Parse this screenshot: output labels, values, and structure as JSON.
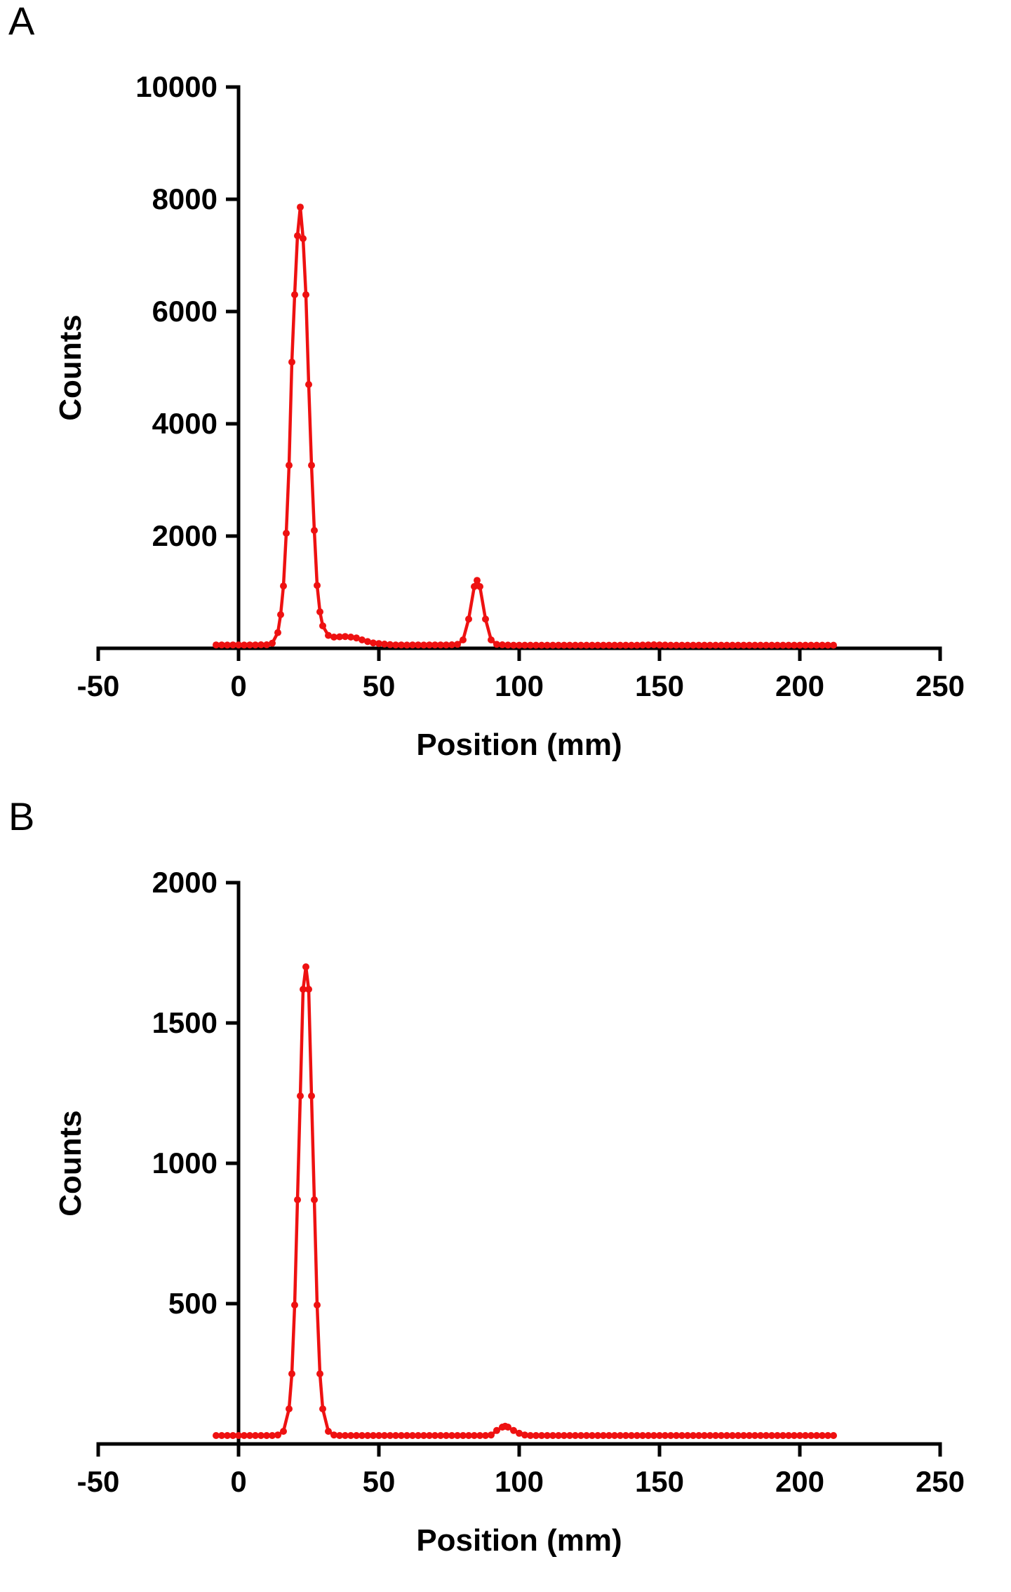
{
  "panels": [
    {
      "letter": "A"
    },
    {
      "letter": "B"
    }
  ],
  "chart_data": [
    {
      "type": "line",
      "title": "",
      "xlabel": "Position (mm)",
      "ylabel": "Counts",
      "xlim": [
        -50,
        250
      ],
      "ylim": [
        0,
        10000
      ],
      "xticks": [
        -50,
        0,
        50,
        100,
        150,
        200,
        250
      ],
      "yticks": [
        2000,
        4000,
        6000,
        8000,
        10000
      ],
      "grid": false,
      "legend": null,
      "marker": "circle",
      "marker_radius": 5,
      "annotations": {
        "main_peak": {
          "x": 22,
          "y": 7860
        },
        "secondary_peak": {
          "x": 85,
          "y": 1210
        }
      },
      "series": [
        {
          "name": "counts-vs-position",
          "color": "#ee1111",
          "points": [
            [
              -8,
              60
            ],
            [
              -6,
              60
            ],
            [
              -4,
              58
            ],
            [
              -2,
              60
            ],
            [
              0,
              60
            ],
            [
              2,
              58
            ],
            [
              4,
              60
            ],
            [
              6,
              60
            ],
            [
              8,
              62
            ],
            [
              10,
              62
            ],
            [
              12,
              90
            ],
            [
              14,
              280
            ],
            [
              15,
              600
            ],
            [
              16,
              1110
            ],
            [
              17,
              2050
            ],
            [
              18,
              3260
            ],
            [
              19,
              5100
            ],
            [
              20,
              6300
            ],
            [
              21,
              7350
            ],
            [
              22,
              7860
            ],
            [
              23,
              7300
            ],
            [
              24,
              6300
            ],
            [
              25,
              4700
            ],
            [
              26,
              3260
            ],
            [
              27,
              2100
            ],
            [
              28,
              1120
            ],
            [
              29,
              650
            ],
            [
              30,
              400
            ],
            [
              32,
              230
            ],
            [
              34,
              200
            ],
            [
              36,
              205
            ],
            [
              38,
              210
            ],
            [
              40,
              200
            ],
            [
              42,
              185
            ],
            [
              44,
              150
            ],
            [
              46,
              120
            ],
            [
              48,
              95
            ],
            [
              50,
              85
            ],
            [
              52,
              75
            ],
            [
              54,
              65
            ],
            [
              56,
              60
            ],
            [
              58,
              60
            ],
            [
              60,
              58
            ],
            [
              62,
              60
            ],
            [
              64,
              60
            ],
            [
              66,
              58
            ],
            [
              68,
              60
            ],
            [
              70,
              60
            ],
            [
              72,
              60
            ],
            [
              74,
              60
            ],
            [
              76,
              62
            ],
            [
              78,
              70
            ],
            [
              80,
              150
            ],
            [
              82,
              520
            ],
            [
              84,
              1100
            ],
            [
              85,
              1210
            ],
            [
              86,
              1100
            ],
            [
              88,
              520
            ],
            [
              90,
              150
            ],
            [
              92,
              70
            ],
            [
              94,
              62
            ],
            [
              96,
              58
            ],
            [
              98,
              55
            ],
            [
              100,
              55
            ],
            [
              102,
              55
            ],
            [
              104,
              55
            ],
            [
              106,
              55
            ],
            [
              108,
              55
            ],
            [
              110,
              55
            ],
            [
              112,
              55
            ],
            [
              114,
              55
            ],
            [
              116,
              55
            ],
            [
              118,
              55
            ],
            [
              120,
              55
            ],
            [
              122,
              55
            ],
            [
              124,
              55
            ],
            [
              126,
              55
            ],
            [
              128,
              55
            ],
            [
              130,
              55
            ],
            [
              132,
              55
            ],
            [
              134,
              55
            ],
            [
              136,
              55
            ],
            [
              138,
              55
            ],
            [
              140,
              55
            ],
            [
              142,
              55
            ],
            [
              144,
              58
            ],
            [
              146,
              60
            ],
            [
              148,
              62
            ],
            [
              150,
              60
            ],
            [
              152,
              58
            ],
            [
              154,
              55
            ],
            [
              156,
              55
            ],
            [
              158,
              55
            ],
            [
              160,
              55
            ],
            [
              162,
              55
            ],
            [
              164,
              55
            ],
            [
              166,
              55
            ],
            [
              168,
              55
            ],
            [
              170,
              55
            ],
            [
              172,
              55
            ],
            [
              174,
              55
            ],
            [
              176,
              55
            ],
            [
              178,
              55
            ],
            [
              180,
              55
            ],
            [
              182,
              55
            ],
            [
              184,
              55
            ],
            [
              186,
              55
            ],
            [
              188,
              55
            ],
            [
              190,
              55
            ],
            [
              192,
              55
            ],
            [
              194,
              55
            ],
            [
              196,
              55
            ],
            [
              198,
              55
            ],
            [
              200,
              55
            ],
            [
              202,
              55
            ],
            [
              204,
              55
            ],
            [
              206,
              55
            ],
            [
              208,
              55
            ],
            [
              210,
              55
            ],
            [
              212,
              55
            ]
          ]
        }
      ]
    },
    {
      "type": "line",
      "title": "",
      "xlabel": "Position (mm)",
      "ylabel": "Counts",
      "xlim": [
        -50,
        250
      ],
      "ylim": [
        0,
        2000
      ],
      "xticks": [
        -50,
        0,
        50,
        100,
        150,
        200,
        250
      ],
      "yticks": [
        500,
        1000,
        1500,
        2000
      ],
      "grid": false,
      "legend": null,
      "marker": "circle",
      "marker_radius": 5,
      "annotations": {
        "main_peak": {
          "x": 24,
          "y": 1700
        },
        "secondary_peak": {
          "x": 95,
          "y": 63
        }
      },
      "series": [
        {
          "name": "counts-vs-position",
          "color": "#ee1111",
          "points": [
            [
              -8,
              30
            ],
            [
              -6,
              30
            ],
            [
              -4,
              30
            ],
            [
              -2,
              30
            ],
            [
              0,
              30
            ],
            [
              2,
              30
            ],
            [
              4,
              30
            ],
            [
              6,
              30
            ],
            [
              8,
              30
            ],
            [
              10,
              30
            ],
            [
              12,
              30
            ],
            [
              14,
              32
            ],
            [
              16,
              45
            ],
            [
              18,
              125
            ],
            [
              19,
              250
            ],
            [
              20,
              495
            ],
            [
              21,
              870
            ],
            [
              22,
              1240
            ],
            [
              23,
              1620
            ],
            [
              24,
              1700
            ],
            [
              25,
              1620
            ],
            [
              26,
              1240
            ],
            [
              27,
              870
            ],
            [
              28,
              495
            ],
            [
              29,
              250
            ],
            [
              30,
              125
            ],
            [
              32,
              45
            ],
            [
              34,
              32
            ],
            [
              36,
              30
            ],
            [
              38,
              30
            ],
            [
              40,
              30
            ],
            [
              42,
              30
            ],
            [
              44,
              30
            ],
            [
              46,
              30
            ],
            [
              48,
              30
            ],
            [
              50,
              30
            ],
            [
              52,
              30
            ],
            [
              54,
              30
            ],
            [
              56,
              30
            ],
            [
              58,
              30
            ],
            [
              60,
              30
            ],
            [
              62,
              30
            ],
            [
              64,
              30
            ],
            [
              66,
              30
            ],
            [
              68,
              30
            ],
            [
              70,
              30
            ],
            [
              72,
              30
            ],
            [
              74,
              30
            ],
            [
              76,
              30
            ],
            [
              78,
              30
            ],
            [
              80,
              30
            ],
            [
              82,
              30
            ],
            [
              84,
              30
            ],
            [
              86,
              30
            ],
            [
              88,
              30
            ],
            [
              90,
              32
            ],
            [
              92,
              48
            ],
            [
              94,
              60
            ],
            [
              95,
              63
            ],
            [
              96,
              60
            ],
            [
              98,
              48
            ],
            [
              100,
              38
            ],
            [
              102,
              32
            ],
            [
              104,
              30
            ],
            [
              106,
              30
            ],
            [
              108,
              30
            ],
            [
              110,
              30
            ],
            [
              112,
              30
            ],
            [
              114,
              30
            ],
            [
              116,
              30
            ],
            [
              118,
              30
            ],
            [
              120,
              30
            ],
            [
              122,
              30
            ],
            [
              124,
              30
            ],
            [
              126,
              30
            ],
            [
              128,
              30
            ],
            [
              130,
              30
            ],
            [
              132,
              30
            ],
            [
              134,
              30
            ],
            [
              136,
              30
            ],
            [
              138,
              30
            ],
            [
              140,
              30
            ],
            [
              142,
              30
            ],
            [
              144,
              30
            ],
            [
              146,
              30
            ],
            [
              148,
              30
            ],
            [
              150,
              30
            ],
            [
              152,
              30
            ],
            [
              154,
              30
            ],
            [
              156,
              30
            ],
            [
              158,
              30
            ],
            [
              160,
              30
            ],
            [
              162,
              30
            ],
            [
              164,
              30
            ],
            [
              166,
              30
            ],
            [
              168,
              30
            ],
            [
              170,
              30
            ],
            [
              172,
              30
            ],
            [
              174,
              30
            ],
            [
              176,
              30
            ],
            [
              178,
              30
            ],
            [
              180,
              30
            ],
            [
              182,
              30
            ],
            [
              184,
              30
            ],
            [
              186,
              30
            ],
            [
              188,
              30
            ],
            [
              190,
              30
            ],
            [
              192,
              30
            ],
            [
              194,
              30
            ],
            [
              196,
              30
            ],
            [
              198,
              30
            ],
            [
              200,
              30
            ],
            [
              202,
              30
            ],
            [
              204,
              30
            ],
            [
              206,
              30
            ],
            [
              208,
              30
            ],
            [
              210,
              30
            ],
            [
              212,
              30
            ]
          ]
        }
      ]
    }
  ]
}
